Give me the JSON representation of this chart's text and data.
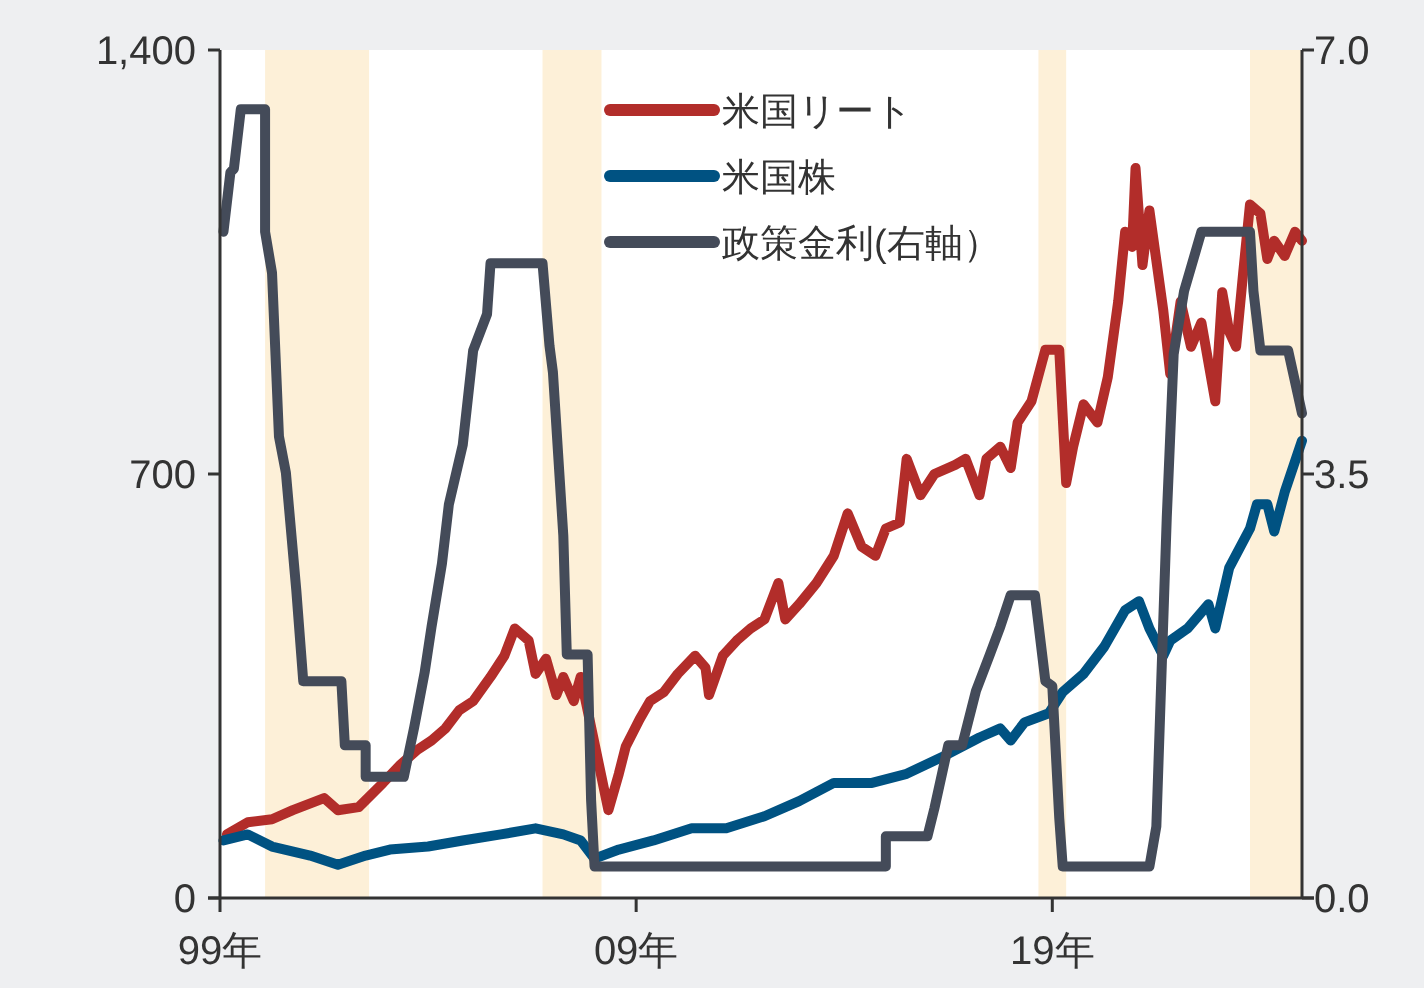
{
  "chart_data": {
    "type": "line",
    "xlim": [
      "1999-01",
      "2025-01"
    ],
    "xticks": [
      {
        "value": "1999-01",
        "label": "99年"
      },
      {
        "value": "2009-01",
        "label": "09年"
      },
      {
        "value": "2019-01",
        "label": "19年"
      }
    ],
    "ylim": [
      0,
      1400
    ],
    "yticks": [
      0,
      700,
      {
        "value": 1400,
        "label": "1,400"
      }
    ],
    "y2lim": [
      0,
      7
    ],
    "y2ticks": [
      {
        "value": 0,
        "label": "0.0"
      },
      {
        "value": 3.5,
        "label": "3.5"
      },
      {
        "value": 7,
        "label": "7.0"
      }
    ],
    "legend": "top",
    "marker": "none",
    "line_style": "solid",
    "bands": [
      {
        "axis": "x",
        "from": "2000-02",
        "to": "2002-08",
        "color": "#fdf0d8"
      },
      {
        "axis": "x",
        "from": "2006-10",
        "to": "2008-03",
        "color": "#fdf0d8"
      },
      {
        "axis": "x",
        "from": "2018-09",
        "to": "2019-05",
        "color": "#fdf0d8"
      },
      {
        "axis": "x",
        "from": "2023-10",
        "to": "2025-01",
        "color": "#fdf0d8"
      }
    ],
    "series": [
      {
        "name": "米国リート",
        "color": "#b22d2a",
        "x": [
          "1999-03",
          "1999-09",
          "2000-04",
          "2000-10",
          "2001-07",
          "2001-11",
          "2002-05",
          "2002-12",
          "2003-05",
          "2003-10",
          "2004-02",
          "2004-06",
          "2004-10",
          "2005-02",
          "2005-07",
          "2005-11",
          "2006-02",
          "2006-06",
          "2006-08",
          "2006-11",
          "2007-02",
          "2007-04",
          "2007-07",
          "2007-09",
          "2008-03",
          "2008-05",
          "2008-08",
          "2008-10",
          "2009-02",
          "2009-05",
          "2009-09",
          "2010-01",
          "2010-06",
          "2010-09",
          "2010-10",
          "2011-02",
          "2011-06",
          "2011-10",
          "2012-02",
          "2012-06",
          "2012-08",
          "2012-12",
          "2013-05",
          "2013-10",
          "2014-02",
          "2014-06",
          "2014-10",
          "2015-01",
          "2015-05",
          "2015-07",
          "2015-11",
          "2016-03",
          "2016-09",
          "2016-12",
          "2017-04",
          "2017-06",
          "2017-10",
          "2018-01",
          "2018-03",
          "2018-07",
          "2018-11",
          "2019-03",
          "2019-05",
          "2019-07",
          "2019-10",
          "2020-02",
          "2020-05",
          "2020-08",
          "2020-10",
          "2020-12",
          "2021-01",
          "2021-03",
          "2021-05",
          "2021-09",
          "2021-11",
          "2022-02",
          "2022-05",
          "2022-08",
          "2022-12",
          "2023-02",
          "2023-04",
          "2023-06",
          "2023-08",
          "2023-10",
          "2024-01",
          "2024-03",
          "2024-05",
          "2024-08",
          "2024-11",
          "2025-01"
        ],
        "values": [
          105,
          125,
          130,
          145,
          165,
          145,
          150,
          190,
          220,
          245,
          260,
          280,
          310,
          325,
          365,
          400,
          445,
          425,
          370,
          395,
          335,
          365,
          325,
          365,
          200,
          145,
          205,
          250,
          295,
          325,
          340,
          370,
          400,
          380,
          335,
          400,
          425,
          445,
          460,
          520,
          460,
          485,
          520,
          565,
          635,
          580,
          565,
          610,
          620,
          725,
          665,
          700,
          715,
          725,
          665,
          725,
          745,
          710,
          785,
          820,
          905,
          905,
          685,
          745,
          815,
          785,
          860,
          985,
          1100,
          1075,
          1205,
          1045,
          1135,
          970,
          865,
          985,
          910,
          950,
          820,
          1000,
          935,
          910,
          1030,
          1145,
          1130,
          1055,
          1085,
          1060,
          1100,
          1085
        ]
      },
      {
        "name": "米国株",
        "color": "#005282",
        "x": [
          "1999-02",
          "1999-09",
          "2000-04",
          "2001-03",
          "2001-11",
          "2002-07",
          "2003-02",
          "2004-01",
          "2004-11",
          "2005-10",
          "2006-08",
          "2007-04",
          "2007-09",
          "2008-01",
          "2008-08",
          "2009-06",
          "2010-05",
          "2011-03",
          "2012-02",
          "2012-12",
          "2013-10",
          "2014-09",
          "2015-07",
          "2016-06",
          "2017-04",
          "2017-10",
          "2018-01",
          "2018-05",
          "2018-12",
          "2019-04",
          "2019-10",
          "2020-04",
          "2020-10",
          "2021-02",
          "2021-05",
          "2021-09",
          "2021-11",
          "2022-04",
          "2022-10",
          "2022-12",
          "2023-04",
          "2023-10",
          "2023-12",
          "2024-03",
          "2024-05",
          "2024-08",
          "2025-01"
        ],
        "values": [
          95,
          105,
          85,
          70,
          55,
          70,
          80,
          85,
          95,
          105,
          115,
          105,
          95,
          65,
          80,
          95,
          115,
          115,
          135,
          160,
          190,
          190,
          205,
          235,
          265,
          280,
          260,
          290,
          305,
          340,
          370,
          415,
          475,
          490,
          445,
          400,
          425,
          445,
          485,
          445,
          545,
          610,
          650,
          650,
          605,
          670,
          755
        ]
      },
      {
        "name": "政策金利(右軸）",
        "color": "#444b59",
        "axis": "y2",
        "x": [
          "1999-02",
          "1999-04",
          "1999-05",
          "1999-07",
          "2000-02",
          "2000-02",
          "2000-04",
          "2000-06",
          "2000-08",
          "2000-11",
          "2001-01",
          "2001-12",
          "2002-01",
          "2002-07",
          "2002-07",
          "2003-06",
          "2003-09",
          "2003-12",
          "2004-02",
          "2004-05",
          "2004-07",
          "2004-11",
          "2005-02",
          "2005-06",
          "2005-07",
          "2006-10",
          "2006-12",
          "2007-01",
          "2007-04",
          "2007-05",
          "2007-11",
          "2007-12",
          "2008-01",
          "2015-01",
          "2015-01",
          "2016-01",
          "2016-03",
          "2016-07",
          "2016-11",
          "2017-03",
          "2017-07",
          "2017-10",
          "2018-01",
          "2018-08",
          "2018-11",
          "2019-01",
          "2019-03",
          "2019-04",
          "2021-05",
          "2021-07",
          "2021-10",
          "2021-12",
          "2022-03",
          "2022-08",
          "2023-10",
          "2023-11",
          "2024-01",
          "2024-09",
          "2025-01"
        ],
        "values": [
          5.5,
          5.99,
          6.02,
          6.51,
          6.51,
          5.5,
          5.16,
          3.81,
          3.51,
          2.54,
          1.79,
          1.79,
          1.26,
          1.26,
          1.0,
          1.0,
          1.41,
          1.86,
          2.24,
          2.76,
          3.25,
          3.74,
          4.52,
          4.82,
          5.24,
          5.24,
          4.56,
          4.34,
          2.99,
          2.01,
          2.01,
          0.81,
          0.26,
          0.26,
          0.51,
          0.51,
          0.74,
          1.26,
          1.26,
          1.71,
          2.01,
          2.24,
          2.5,
          2.5,
          1.79,
          1.75,
          0.66,
          0.26,
          0.26,
          0.59,
          3.14,
          4.49,
          5.01,
          5.5,
          5.5,
          5.01,
          4.52,
          4.52,
          4.0
        ]
      }
    ]
  }
}
